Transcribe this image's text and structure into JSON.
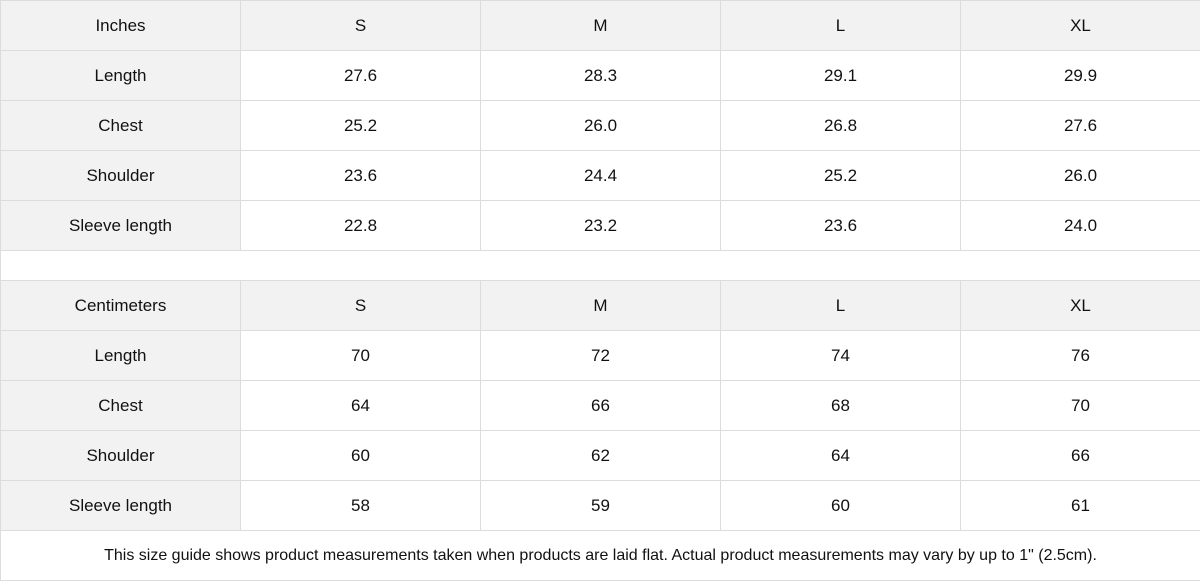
{
  "tables": [
    {
      "header": [
        "Inches",
        "S",
        "M",
        "L",
        "XL"
      ],
      "rows": [
        [
          "Length",
          "27.6",
          "28.3",
          "29.1",
          "29.9"
        ],
        [
          "Chest",
          "25.2",
          "26.0",
          "26.8",
          "27.6"
        ],
        [
          "Shoulder",
          "23.6",
          "24.4",
          "25.2",
          "26.0"
        ],
        [
          "Sleeve length",
          "22.8",
          "23.2",
          "23.6",
          "24.0"
        ]
      ]
    },
    {
      "header": [
        "Centimeters",
        "S",
        "M",
        "L",
        "XL"
      ],
      "rows": [
        [
          "Length",
          "70",
          "72",
          "74",
          "76"
        ],
        [
          "Chest",
          "64",
          "66",
          "68",
          "70"
        ],
        [
          "Shoulder",
          "60",
          "62",
          "64",
          "66"
        ],
        [
          "Sleeve length",
          "58",
          "59",
          "60",
          "61"
        ]
      ]
    }
  ],
  "footnote": "This size guide shows product measurements taken when products are laid flat.  Actual product measurements may vary by up to 1\" (2.5cm).",
  "colors": {
    "header_bg": "#f2f2f2",
    "border": "#dcdcdc"
  }
}
